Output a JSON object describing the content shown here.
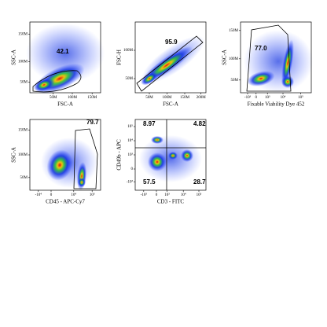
{
  "panels": [
    {
      "y_label": "SSC-A",
      "x_label": "FSC-A",
      "x_ticks": [
        "50M",
        "100M",
        "150M"
      ],
      "y_ticks": [
        "50M",
        "100M",
        "150M"
      ],
      "gates": [
        "42.1"
      ]
    },
    {
      "y_label": "FSC-H",
      "x_label": "FSC-A",
      "x_ticks": [
        "50M",
        "100M",
        "150M",
        "200M"
      ],
      "y_ticks": [
        "50M",
        "100M"
      ],
      "gates": [
        "95.9"
      ]
    },
    {
      "y_label": "SSC-A",
      "x_label": "Fixable Viability Dye 452",
      "x_ticks": [
        "-10³",
        "0",
        "10³",
        "10⁴",
        "10⁵"
      ],
      "y_ticks": [
        "50M",
        "100M",
        "150M"
      ],
      "gates": [
        "77.0"
      ]
    },
    {
      "y_label": "SSC-A",
      "x_label": "CD45 - APC-Cy7",
      "x_ticks": [
        "-10⁴",
        "0",
        "10⁴",
        "10⁵"
      ],
      "y_ticks": [
        "50M",
        "100M",
        "150M"
      ],
      "gates": [
        "79.7"
      ]
    },
    {
      "y_label": "CD49b - APC",
      "x_label": "CD3 - FITC",
      "x_ticks": [
        "-10³",
        "0",
        "10³",
        "10⁴",
        "10⁵"
      ],
      "y_ticks": [
        "-10³",
        "0",
        "10³",
        "10⁴",
        "10⁵"
      ],
      "gates": [
        "8.97",
        "4.82",
        "57.5",
        "28.7"
      ]
    }
  ]
}
